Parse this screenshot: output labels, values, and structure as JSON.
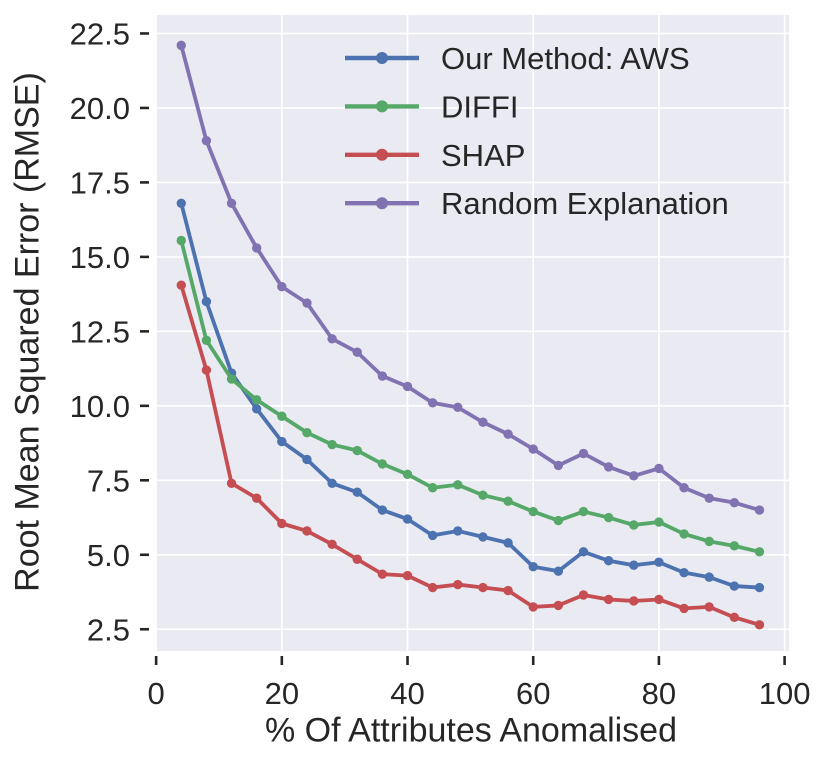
{
  "figure": {
    "background_color": "#ffffff",
    "plot_background_color": "#eaeaf2",
    "grid_color": "#ffffff",
    "text_color": "#262626",
    "tick_color": "#262626"
  },
  "chart_data": {
    "type": "line",
    "title": "",
    "xlabel": "% Of Attributes Anomalised",
    "ylabel": "Root Mean Squared Error (RMSE)",
    "x": [
      4,
      8,
      12,
      16,
      20,
      24,
      28,
      32,
      36,
      40,
      44,
      48,
      52,
      56,
      60,
      64,
      68,
      72,
      76,
      80,
      84,
      88,
      92,
      96
    ],
    "series": [
      {
        "name": "Our Method: AWS",
        "color": "#4c72b0",
        "values": [
          16.8,
          13.5,
          11.1,
          9.9,
          8.8,
          8.2,
          7.4,
          7.1,
          6.5,
          6.2,
          5.65,
          5.8,
          5.6,
          5.4,
          4.6,
          4.45,
          5.1,
          4.8,
          4.65,
          4.75,
          4.4,
          4.25,
          3.95,
          3.9
        ]
      },
      {
        "name": "DIFFI",
        "color": "#55a868",
        "values": [
          15.55,
          12.2,
          10.9,
          10.2,
          9.65,
          9.1,
          8.7,
          8.5,
          8.05,
          7.7,
          7.25,
          7.35,
          7.0,
          6.8,
          6.45,
          6.15,
          6.45,
          6.25,
          6.0,
          6.1,
          5.7,
          5.45,
          5.3,
          5.1
        ]
      },
      {
        "name": "SHAP",
        "color": "#c44e52",
        "values": [
          14.05,
          11.2,
          7.4,
          6.9,
          6.05,
          5.8,
          5.35,
          4.85,
          4.35,
          4.3,
          3.9,
          4.0,
          3.9,
          3.8,
          3.25,
          3.3,
          3.65,
          3.5,
          3.45,
          3.5,
          3.2,
          3.25,
          2.9,
          2.65
        ]
      },
      {
        "name": "Random Explanation",
        "color": "#8172b2",
        "values": [
          22.1,
          18.9,
          16.8,
          15.3,
          14.0,
          13.45,
          12.25,
          11.8,
          11.0,
          10.65,
          10.1,
          9.95,
          9.45,
          9.05,
          8.55,
          8.0,
          8.4,
          7.95,
          7.65,
          7.9,
          7.25,
          6.9,
          6.75,
          6.5
        ]
      }
    ],
    "xticks": {
      "values": [
        0,
        20,
        40,
        60,
        80,
        100
      ],
      "labels": [
        "0",
        "20",
        "40",
        "60",
        "80",
        "100"
      ]
    },
    "yticks": {
      "values": [
        2.5,
        5.0,
        7.5,
        10.0,
        12.5,
        15.0,
        17.5,
        20.0,
        22.5
      ],
      "labels": [
        "2.5",
        "5.0",
        "7.5",
        "10.0",
        "12.5",
        "15.0",
        "17.5",
        "20.0",
        "22.5"
      ]
    },
    "xlim": [
      -0.1,
      100.7
    ],
    "ylim": [
      1.77,
      23.12
    ],
    "grid": true,
    "legend": {
      "position": "upper right",
      "frame": false,
      "entries": [
        "Our Method: AWS",
        "DIFFI",
        "SHAP",
        "Random Explanation"
      ]
    }
  }
}
